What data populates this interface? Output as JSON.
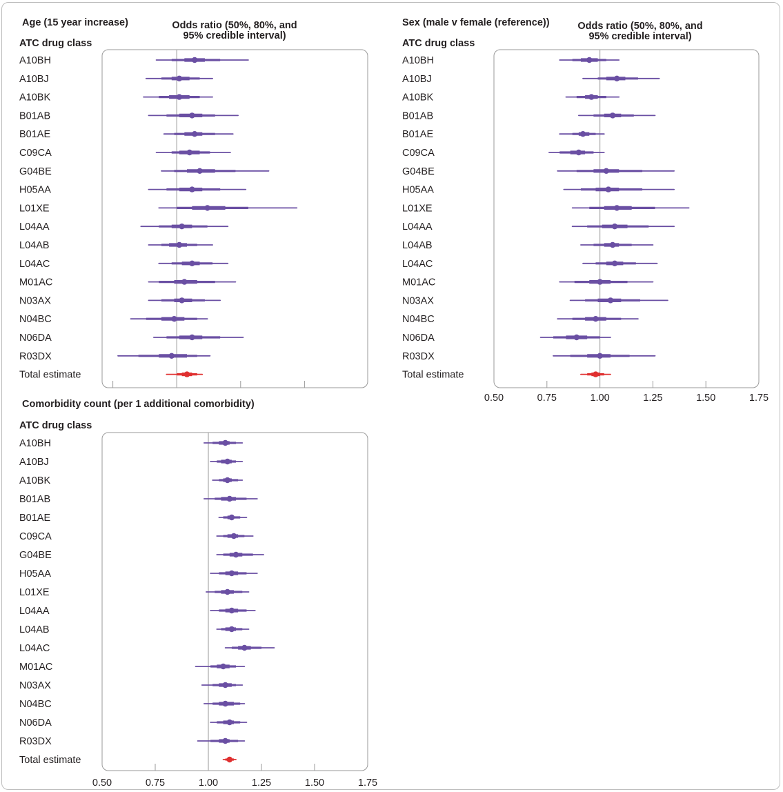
{
  "chart_data": [
    {
      "type": "forest",
      "title": "Age (15 year increase)",
      "subtitle": "Odds ratio (50%, 80%, and 95% credible interval)",
      "ylabel": "ATC drug class",
      "xlim": [
        0.5,
        1.75
      ],
      "xticks": [],
      "reference_line": 1.0,
      "colors": {
        "series": "#6a4fa3",
        "total": "#e03030"
      },
      "rows": [
        {
          "label": "A10BH",
          "est": 1.07,
          "ci50": [
            1.03,
            1.11
          ],
          "ci80": [
            0.98,
            1.17
          ],
          "ci95": [
            0.92,
            1.28
          ],
          "total": false
        },
        {
          "label": "A10BJ",
          "est": 1.01,
          "ci50": [
            0.98,
            1.05
          ],
          "ci80": [
            0.94,
            1.09
          ],
          "ci95": [
            0.88,
            1.14
          ],
          "total": false
        },
        {
          "label": "A10BK",
          "est": 1.01,
          "ci50": [
            0.97,
            1.05
          ],
          "ci80": [
            0.93,
            1.09
          ],
          "ci95": [
            0.87,
            1.14
          ],
          "total": false
        },
        {
          "label": "B01AB",
          "est": 1.06,
          "ci50": [
            1.01,
            1.1
          ],
          "ci80": [
            0.96,
            1.15
          ],
          "ci95": [
            0.89,
            1.24
          ],
          "total": false
        },
        {
          "label": "B01AE",
          "est": 1.07,
          "ci50": [
            1.03,
            1.1
          ],
          "ci80": [
            0.99,
            1.15
          ],
          "ci95": [
            0.95,
            1.22
          ],
          "total": false
        },
        {
          "label": "C09CA",
          "est": 1.05,
          "ci50": [
            1.01,
            1.09
          ],
          "ci80": [
            0.98,
            1.13
          ],
          "ci95": [
            0.92,
            1.21
          ],
          "total": false
        },
        {
          "label": "G04BE",
          "est": 1.09,
          "ci50": [
            1.04,
            1.15
          ],
          "ci80": [
            0.99,
            1.23
          ],
          "ci95": [
            0.94,
            1.36
          ],
          "total": false
        },
        {
          "label": "H05AA",
          "est": 1.06,
          "ci50": [
            1.01,
            1.1
          ],
          "ci80": [
            0.96,
            1.17
          ],
          "ci95": [
            0.89,
            1.27
          ],
          "total": false
        },
        {
          "label": "L01XE",
          "est": 1.12,
          "ci50": [
            1.06,
            1.19
          ],
          "ci80": [
            1.0,
            1.28
          ],
          "ci95": [
            0.93,
            1.47
          ],
          "total": false
        },
        {
          "label": "L04AA",
          "est": 1.02,
          "ci50": [
            0.98,
            1.06
          ],
          "ci80": [
            0.93,
            1.12
          ],
          "ci95": [
            0.86,
            1.2
          ],
          "total": false
        },
        {
          "label": "L04AB",
          "est": 1.01,
          "ci50": [
            0.97,
            1.04
          ],
          "ci80": [
            0.94,
            1.08
          ],
          "ci95": [
            0.89,
            1.14
          ],
          "total": false
        },
        {
          "label": "L04AC",
          "est": 1.06,
          "ci50": [
            1.02,
            1.09
          ],
          "ci80": [
            0.98,
            1.14
          ],
          "ci95": [
            0.93,
            1.2
          ],
          "total": false
        },
        {
          "label": "M01AC",
          "est": 1.03,
          "ci50": [
            0.99,
            1.08
          ],
          "ci80": [
            0.93,
            1.15
          ],
          "ci95": [
            0.89,
            1.23
          ],
          "total": false
        },
        {
          "label": "N03AX",
          "est": 1.02,
          "ci50": [
            0.99,
            1.06
          ],
          "ci80": [
            0.94,
            1.11
          ],
          "ci95": [
            0.89,
            1.17
          ],
          "total": false
        },
        {
          "label": "N04BC",
          "est": 0.99,
          "ci50": [
            0.94,
            1.03
          ],
          "ci80": [
            0.88,
            1.08
          ],
          "ci95": [
            0.82,
            1.12
          ],
          "total": false
        },
        {
          "label": "N06DA",
          "est": 1.06,
          "ci50": [
            1.01,
            1.1
          ],
          "ci80": [
            0.96,
            1.17
          ],
          "ci95": [
            0.91,
            1.26
          ],
          "total": false
        },
        {
          "label": "R03DX",
          "est": 0.98,
          "ci50": [
            0.93,
            1.04
          ],
          "ci80": [
            0.85,
            1.08
          ],
          "ci95": [
            0.77,
            1.13
          ],
          "total": false
        },
        {
          "label": "Total estimate",
          "est": 1.04,
          "ci50": [
            1.02,
            1.06
          ],
          "ci80": [
            1.0,
            1.08
          ],
          "ci95": [
            0.96,
            1.1
          ],
          "total": true
        }
      ]
    },
    {
      "type": "forest",
      "title": "Sex (male v female (reference))",
      "subtitle": "Odds ratio (50%, 80%, and 95% credible interval)",
      "ylabel": "ATC drug class",
      "xlim": [
        0.5,
        1.75
      ],
      "xticks": [
        "0.50",
        "0.75",
        "1.00",
        "1.25",
        "1.50",
        "1.75"
      ],
      "reference_line": 1.0,
      "colors": {
        "series": "#6a4fa3",
        "total": "#e03030"
      },
      "rows": [
        {
          "label": "A10BH",
          "est": 0.95,
          "ci50": [
            0.91,
            0.99
          ],
          "ci80": [
            0.87,
            1.03
          ],
          "ci95": [
            0.81,
            1.09
          ],
          "total": false
        },
        {
          "label": "A10BJ",
          "est": 1.08,
          "ci50": [
            1.03,
            1.12
          ],
          "ci80": [
            0.99,
            1.18
          ],
          "ci95": [
            0.92,
            1.28
          ],
          "total": false
        },
        {
          "label": "A10BK",
          "est": 0.96,
          "ci50": [
            0.93,
            0.99
          ],
          "ci80": [
            0.89,
            1.03
          ],
          "ci95": [
            0.84,
            1.09
          ],
          "total": false
        },
        {
          "label": "B01AB",
          "est": 1.06,
          "ci50": [
            1.02,
            1.1
          ],
          "ci80": [
            0.97,
            1.16
          ],
          "ci95": [
            0.9,
            1.26
          ],
          "total": false
        },
        {
          "label": "B01AE",
          "est": 0.92,
          "ci50": [
            0.9,
            0.95
          ],
          "ci80": [
            0.87,
            0.98
          ],
          "ci95": [
            0.81,
            1.02
          ],
          "total": false
        },
        {
          "label": "C09CA",
          "est": 0.9,
          "ci50": [
            0.86,
            0.93
          ],
          "ci80": [
            0.81,
            0.97
          ],
          "ci95": [
            0.76,
            1.02
          ],
          "total": false
        },
        {
          "label": "G04BE",
          "est": 1.03,
          "ci50": [
            0.97,
            1.09
          ],
          "ci80": [
            0.89,
            1.2
          ],
          "ci95": [
            0.8,
            1.35
          ],
          "total": false
        },
        {
          "label": "H05AA",
          "est": 1.04,
          "ci50": [
            0.98,
            1.09
          ],
          "ci80": [
            0.91,
            1.2
          ],
          "ci95": [
            0.83,
            1.35
          ],
          "total": false
        },
        {
          "label": "L01XE",
          "est": 1.08,
          "ci50": [
            1.02,
            1.15
          ],
          "ci80": [
            0.95,
            1.26
          ],
          "ci95": [
            0.87,
            1.42
          ],
          "total": false
        },
        {
          "label": "L04AA",
          "est": 1.07,
          "ci50": [
            1.01,
            1.13
          ],
          "ci80": [
            0.94,
            1.23
          ],
          "ci95": [
            0.87,
            1.35
          ],
          "total": false
        },
        {
          "label": "L04AB",
          "est": 1.06,
          "ci50": [
            1.02,
            1.09
          ],
          "ci80": [
            0.97,
            1.15
          ],
          "ci95": [
            0.91,
            1.25
          ],
          "total": false
        },
        {
          "label": "L04AC",
          "est": 1.07,
          "ci50": [
            1.03,
            1.11
          ],
          "ci80": [
            0.98,
            1.17
          ],
          "ci95": [
            0.92,
            1.27
          ],
          "total": false
        },
        {
          "label": "M01AC",
          "est": 1.0,
          "ci50": [
            0.95,
            1.05
          ],
          "ci80": [
            0.88,
            1.13
          ],
          "ci95": [
            0.81,
            1.25
          ],
          "total": false
        },
        {
          "label": "N03AX",
          "est": 1.05,
          "ci50": [
            0.99,
            1.1
          ],
          "ci80": [
            0.93,
            1.19
          ],
          "ci95": [
            0.86,
            1.32
          ],
          "total": false
        },
        {
          "label": "N04BC",
          "est": 0.98,
          "ci50": [
            0.93,
            1.03
          ],
          "ci80": [
            0.87,
            1.1
          ],
          "ci95": [
            0.8,
            1.18
          ],
          "total": false
        },
        {
          "label": "N06DA",
          "est": 0.89,
          "ci50": [
            0.84,
            0.94
          ],
          "ci80": [
            0.78,
            1.0
          ],
          "ci95": [
            0.72,
            1.05
          ],
          "total": false
        },
        {
          "label": "R03DX",
          "est": 1.0,
          "ci50": [
            0.94,
            1.05
          ],
          "ci80": [
            0.86,
            1.14
          ],
          "ci95": [
            0.78,
            1.26
          ],
          "total": false
        },
        {
          "label": "Total estimate",
          "est": 0.98,
          "ci50": [
            0.96,
            1.0
          ],
          "ci80": [
            0.94,
            1.02
          ],
          "ci95": [
            0.91,
            1.05
          ],
          "total": true
        }
      ]
    },
    {
      "type": "forest",
      "title": "Comorbidity count (per 1 additional comorbidity)",
      "subtitle": "",
      "ylabel": "ATC drug class",
      "xlim": [
        0.5,
        1.75
      ],
      "xticks": [
        "0.50",
        "0.75",
        "1.00",
        "1.25",
        "1.50",
        "1.75"
      ],
      "reference_line": 1.0,
      "colors": {
        "series": "#6a4fa3",
        "total": "#e03030"
      },
      "rows": [
        {
          "label": "A10BH",
          "est": 1.08,
          "ci50": [
            1.05,
            1.1
          ],
          "ci80": [
            1.02,
            1.13
          ],
          "ci95": [
            0.98,
            1.16
          ],
          "total": false
        },
        {
          "label": "A10BJ",
          "est": 1.09,
          "ci50": [
            1.06,
            1.11
          ],
          "ci80": [
            1.04,
            1.13
          ],
          "ci95": [
            1.01,
            1.16
          ],
          "total": false
        },
        {
          "label": "A10BK",
          "est": 1.09,
          "ci50": [
            1.07,
            1.11
          ],
          "ci80": [
            1.05,
            1.14
          ],
          "ci95": [
            1.02,
            1.16
          ],
          "total": false
        },
        {
          "label": "B01AB",
          "est": 1.1,
          "ci50": [
            1.06,
            1.13
          ],
          "ci80": [
            1.03,
            1.18
          ],
          "ci95": [
            0.98,
            1.23
          ],
          "total": false
        },
        {
          "label": "B01AE",
          "est": 1.11,
          "ci50": [
            1.09,
            1.12
          ],
          "ci80": [
            1.07,
            1.15
          ],
          "ci95": [
            1.05,
            1.18
          ],
          "total": false
        },
        {
          "label": "C09CA",
          "est": 1.12,
          "ci50": [
            1.09,
            1.14
          ],
          "ci80": [
            1.07,
            1.17
          ],
          "ci95": [
            1.04,
            1.21
          ],
          "total": false
        },
        {
          "label": "G04BE",
          "est": 1.13,
          "ci50": [
            1.1,
            1.16
          ],
          "ci80": [
            1.07,
            1.21
          ],
          "ci95": [
            1.04,
            1.26
          ],
          "total": false
        },
        {
          "label": "H05AA",
          "est": 1.11,
          "ci50": [
            1.08,
            1.14
          ],
          "ci80": [
            1.05,
            1.18
          ],
          "ci95": [
            1.01,
            1.23
          ],
          "total": false
        },
        {
          "label": "L01XE",
          "est": 1.09,
          "ci50": [
            1.06,
            1.12
          ],
          "ci80": [
            1.03,
            1.16
          ],
          "ci95": [
            0.99,
            1.19
          ],
          "total": false
        },
        {
          "label": "L04AA",
          "est": 1.11,
          "ci50": [
            1.08,
            1.14
          ],
          "ci80": [
            1.05,
            1.18
          ],
          "ci95": [
            1.01,
            1.22
          ],
          "total": false
        },
        {
          "label": "L04AB",
          "est": 1.11,
          "ci50": [
            1.08,
            1.13
          ],
          "ci80": [
            1.06,
            1.16
          ],
          "ci95": [
            1.04,
            1.19
          ],
          "total": false
        },
        {
          "label": "L04AC",
          "est": 1.17,
          "ci50": [
            1.14,
            1.2
          ],
          "ci80": [
            1.11,
            1.25
          ],
          "ci95": [
            1.08,
            1.31
          ],
          "total": false
        },
        {
          "label": "M01AC",
          "est": 1.07,
          "ci50": [
            1.04,
            1.1
          ],
          "ci80": [
            1.01,
            1.13
          ],
          "ci95": [
            0.94,
            1.17
          ],
          "total": false
        },
        {
          "label": "N03AX",
          "est": 1.08,
          "ci50": [
            1.05,
            1.11
          ],
          "ci80": [
            1.02,
            1.13
          ],
          "ci95": [
            0.97,
            1.16
          ],
          "total": false
        },
        {
          "label": "N04BC",
          "est": 1.08,
          "ci50": [
            1.05,
            1.12
          ],
          "ci80": [
            1.02,
            1.15
          ],
          "ci95": [
            0.98,
            1.17
          ],
          "total": false
        },
        {
          "label": "N06DA",
          "est": 1.1,
          "ci50": [
            1.07,
            1.12
          ],
          "ci80": [
            1.04,
            1.15
          ],
          "ci95": [
            1.01,
            1.18
          ],
          "total": false
        },
        {
          "label": "R03DX",
          "est": 1.08,
          "ci50": [
            1.05,
            1.1
          ],
          "ci80": [
            1.01,
            1.14
          ],
          "ci95": [
            0.95,
            1.17
          ],
          "total": false
        },
        {
          "label": "Total estimate",
          "est": 1.1,
          "ci50": [
            1.09,
            1.11
          ],
          "ci80": [
            1.08,
            1.12
          ],
          "ci95": [
            1.07,
            1.13
          ],
          "total": true
        }
      ]
    }
  ]
}
